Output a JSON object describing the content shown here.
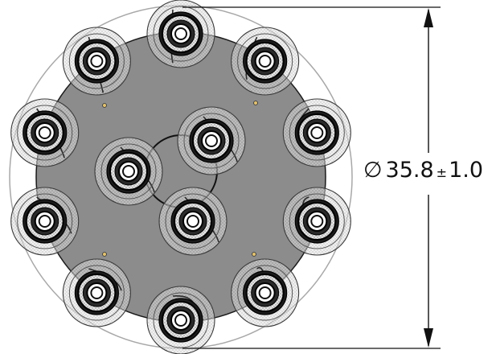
{
  "dimension": {
    "symbol": "∅",
    "value": "35.8",
    "plus_minus": "±",
    "tolerance": "1.0"
  },
  "colors": {
    "plate_fill": "#8c8c8c",
    "outline": "#1a1a1a",
    "phantom": "#9a9a9a",
    "flange": "#d6d6d6",
    "dimension_line": "#111111"
  },
  "connectors": {
    "outer_ring_count": 10,
    "inner_cluster_count": 3
  }
}
